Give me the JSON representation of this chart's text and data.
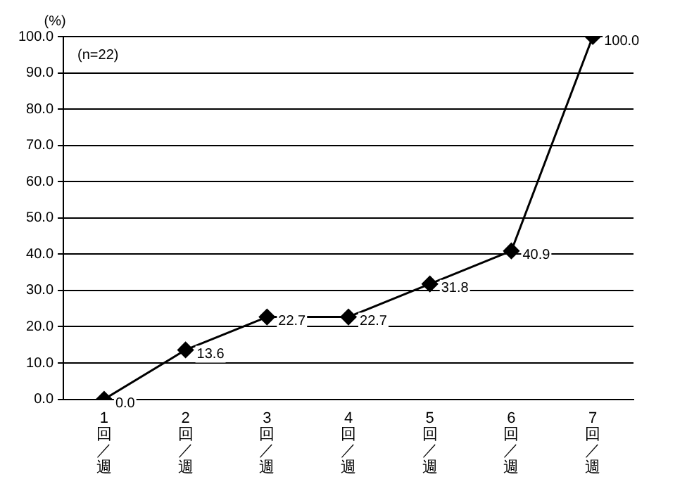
{
  "chart_data": {
    "type": "line",
    "ylabel": "(%)",
    "annotations": [
      "(n=22)"
    ],
    "categories": [
      "1回／週",
      "2回／週",
      "3回／週",
      "4回／週",
      "5回／週",
      "6回／週",
      "7回／週"
    ],
    "series": [
      {
        "color": "#000000",
        "values": [
          0.0,
          13.6,
          22.7,
          22.7,
          31.8,
          40.9,
          100.0
        ],
        "value_labels": [
          "0.0",
          "13.6",
          "22.7",
          "22.7",
          "31.8",
          "40.9",
          "100.0"
        ]
      }
    ],
    "ylim": [
      0,
      100
    ],
    "yticks": [
      {
        "value": 0,
        "label": "0.0"
      },
      {
        "value": 10,
        "label": "10.0"
      },
      {
        "value": 20,
        "label": "20.0"
      },
      {
        "value": 30,
        "label": "30.0"
      },
      {
        "value": 40,
        "label": "40.0"
      },
      {
        "value": 50,
        "label": "50.0"
      },
      {
        "value": 60,
        "label": "60.0"
      },
      {
        "value": 70,
        "label": "70.0"
      },
      {
        "value": 80,
        "label": "80.0"
      },
      {
        "value": 90,
        "label": "90.0"
      },
      {
        "value": 100,
        "label": "100.0"
      }
    ],
    "grid": "y",
    "legend": false,
    "marker": "diamond",
    "line_style": "solid"
  }
}
